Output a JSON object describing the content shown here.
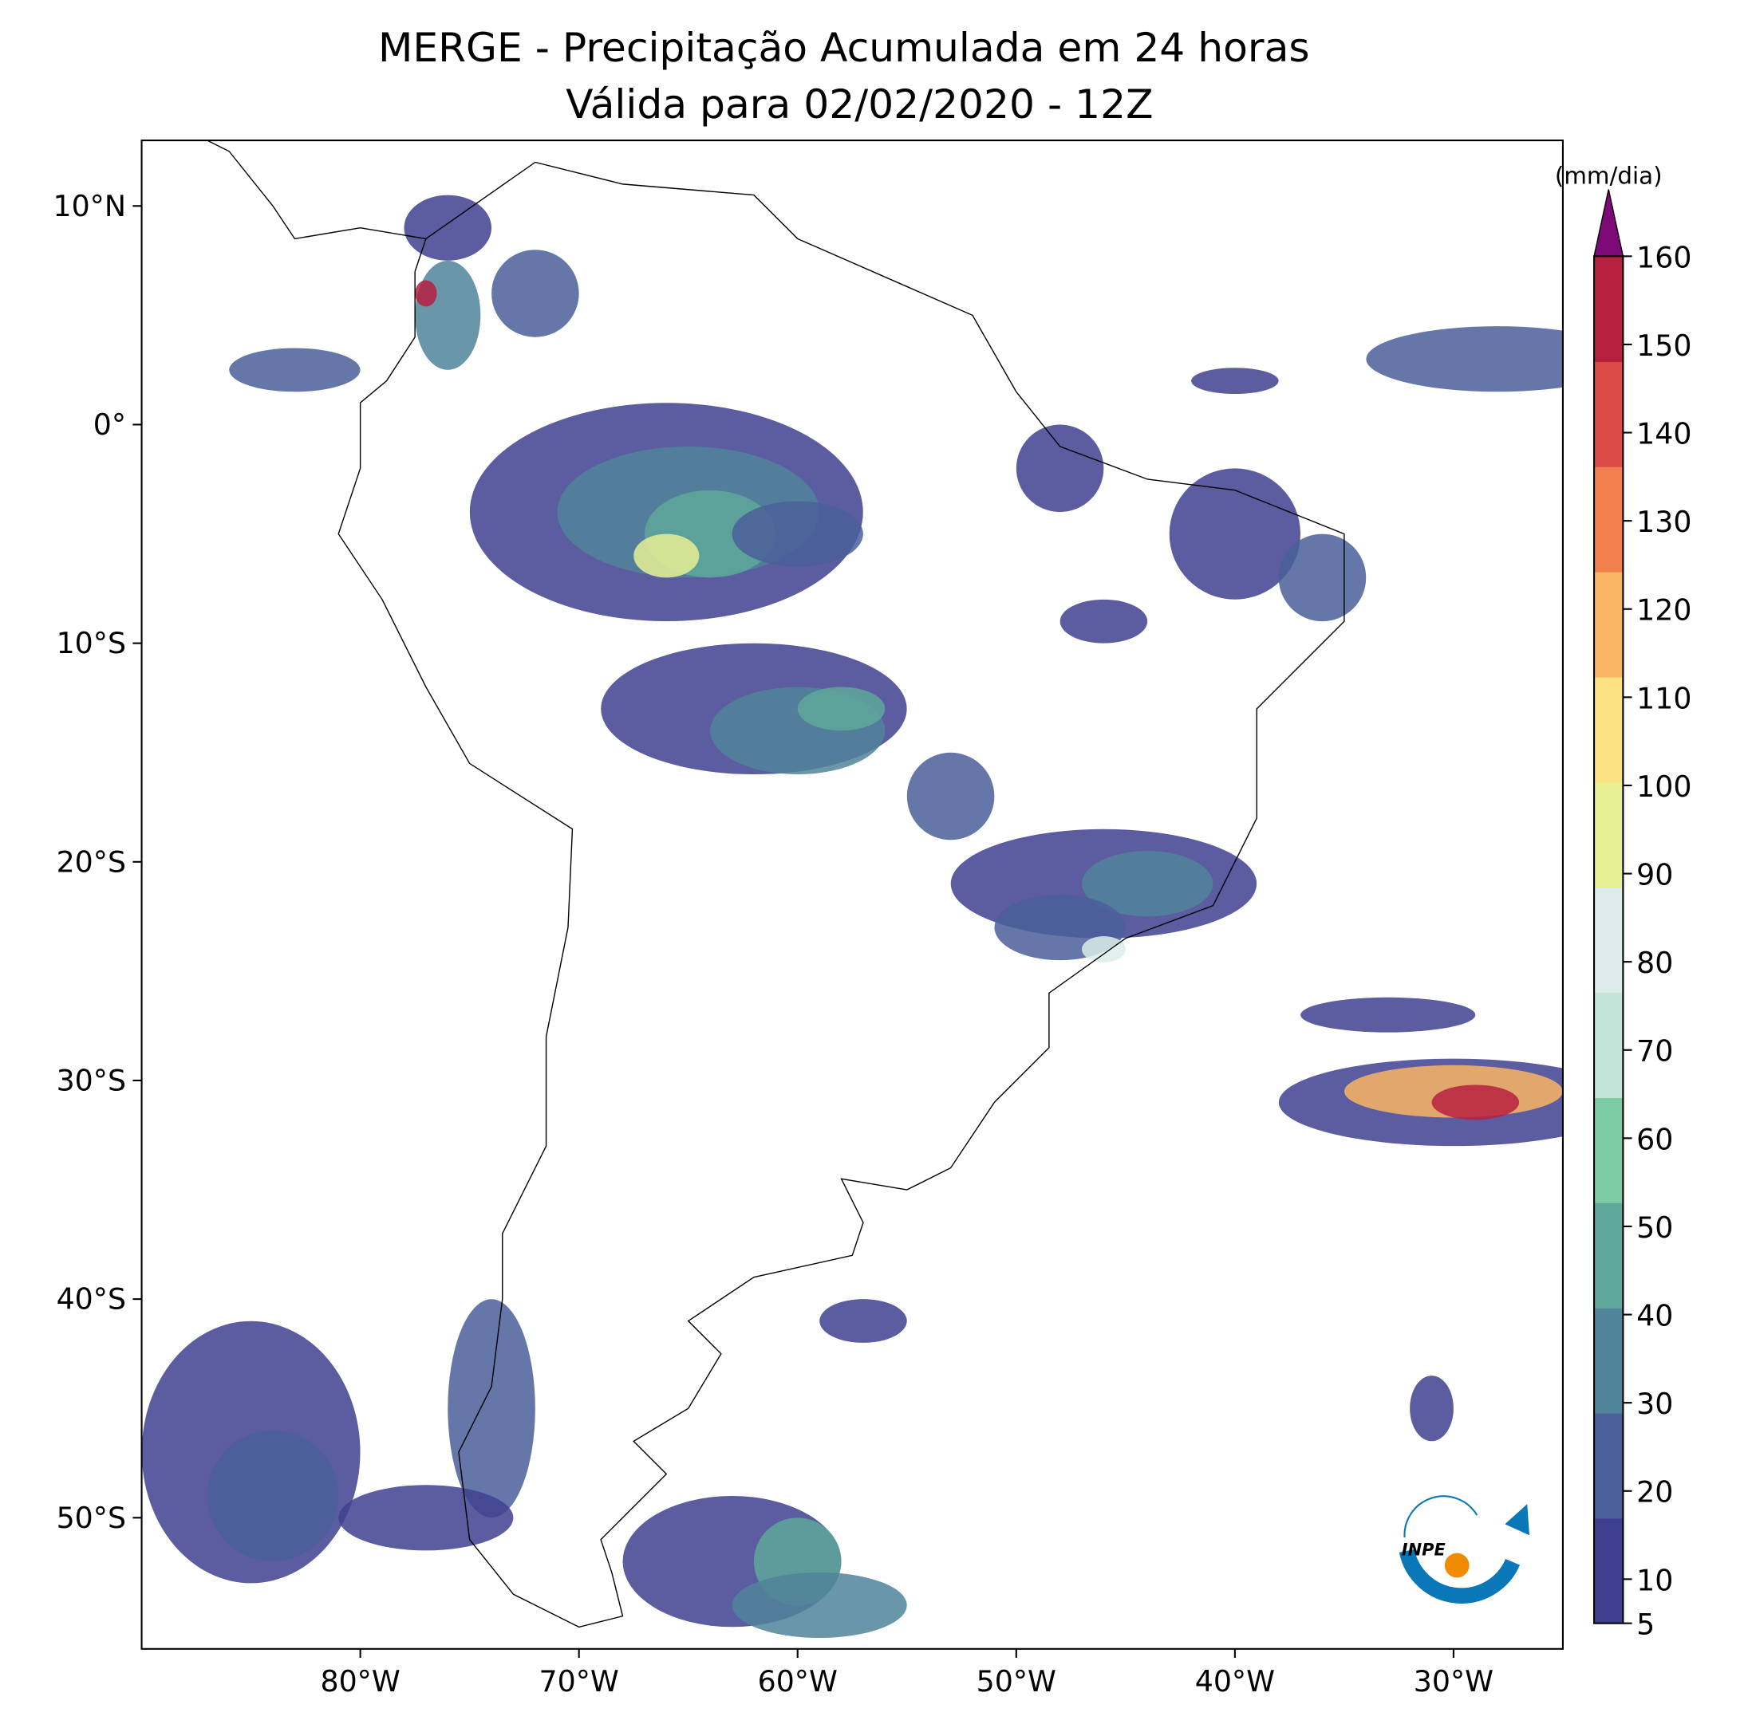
{
  "map": {
    "title": "MERGE - Precipitação Acumulada em 24 horas",
    "subtitle": "Válida para 02/02/2020 - 12Z",
    "xlim": [
      -90,
      -25
    ],
    "ylim": [
      -56,
      13
    ],
    "xticks": [
      {
        "value": -80,
        "label": "80°W"
      },
      {
        "value": -70,
        "label": "70°W"
      },
      {
        "value": -60,
        "label": "60°W"
      },
      {
        "value": -50,
        "label": "50°W"
      },
      {
        "value": -40,
        "label": "40°W"
      },
      {
        "value": -30,
        "label": "30°W"
      }
    ],
    "yticks": [
      {
        "value": 10,
        "label": "10°N"
      },
      {
        "value": 0,
        "label": "0°"
      },
      {
        "value": -10,
        "label": "10°S"
      },
      {
        "value": -20,
        "label": "20°S"
      },
      {
        "value": -30,
        "label": "30°S"
      },
      {
        "value": -40,
        "label": "40°S"
      },
      {
        "value": -50,
        "label": "50°S"
      }
    ],
    "colorbar": {
      "label": "(mm/dia)",
      "lim": [
        5,
        160
      ],
      "ticks": [
        5,
        10,
        20,
        30,
        40,
        50,
        60,
        70,
        80,
        90,
        100,
        110,
        120,
        130,
        140,
        150,
        160
      ],
      "colors": [
        "#3f3f8f",
        "#4a5f99",
        "#50849a",
        "#5ea79a",
        "#7ccba1",
        "#c2e4d8",
        "#dcecea",
        "#e8ef95",
        "#fbe17f",
        "#f9b464",
        "#f2804f",
        "#dd4b48",
        "#b5203f"
      ],
      "extend_color": "#7d0a76"
    },
    "logo": {
      "text": "INPE"
    }
  }
}
